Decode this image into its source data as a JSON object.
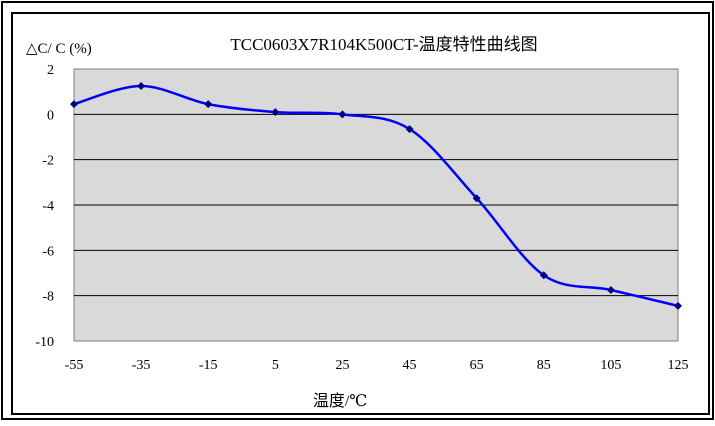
{
  "chart_data": {
    "type": "line",
    "title": "TCC0603X7R104K500CT-温度特性曲线图",
    "ylabel": "△C/ C (%)",
    "xlabel": "温度/℃",
    "x": [
      -55,
      -35,
      -15,
      5,
      25,
      45,
      65,
      85,
      105,
      125
    ],
    "xlim": [
      -55,
      125
    ],
    "ylim": [
      -10,
      2
    ],
    "yticks": [
      2,
      0,
      -2,
      -4,
      -6,
      -8,
      -10
    ],
    "grid": true,
    "plot_background": "#d9d9d9",
    "series": [
      {
        "color": "#0000ff",
        "marker_color": "#000080",
        "values": [
          0.45,
          1.25,
          0.45,
          0.1,
          0.0,
          -0.65,
          -3.7,
          -7.1,
          -7.75,
          -8.45
        ]
      }
    ]
  }
}
